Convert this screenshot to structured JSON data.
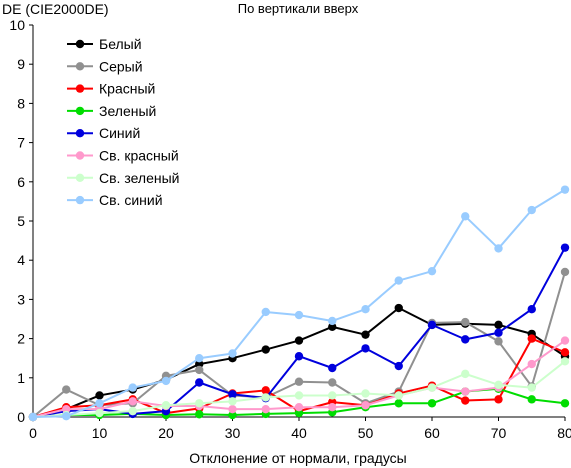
{
  "chart_data": {
    "type": "line",
    "title": "По вертикали вверх",
    "ylabel": "DE (CIE2000DE)",
    "xlabel": "Отклонение от нормали, градусы",
    "x": [
      0,
      5,
      10,
      15,
      20,
      25,
      30,
      35,
      40,
      45,
      50,
      55,
      60,
      65,
      70,
      75,
      80
    ],
    "xlim": [
      0,
      80
    ],
    "ylim": [
      0,
      10
    ],
    "xticks": [
      "0",
      "10",
      "20",
      "30",
      "40",
      "50",
      "60",
      "70",
      "80"
    ],
    "yticks": [
      "0",
      "1",
      "2",
      "3",
      "4",
      "5",
      "6",
      "7",
      "8",
      "9",
      "10"
    ],
    "grid": false,
    "legend_position": "top-left",
    "series": [
      {
        "name": "Белый",
        "color": "#000000",
        "values": [
          0,
          0.2,
          0.55,
          0.7,
          0.95,
          1.35,
          1.5,
          1.72,
          1.95,
          2.3,
          2.1,
          2.78,
          2.35,
          2.38,
          2.35,
          2.12,
          1.55
        ]
      },
      {
        "name": "Серый",
        "color": "#909090",
        "values": [
          0,
          0.7,
          0.3,
          0.35,
          1.05,
          1.2,
          0.55,
          0.5,
          0.9,
          0.88,
          0.35,
          0.65,
          2.4,
          2.42,
          1.93,
          0.78,
          3.7
        ]
      },
      {
        "name": "Красный",
        "color": "#ff0000",
        "values": [
          0,
          0.25,
          0.3,
          0.45,
          0.1,
          0.22,
          0.6,
          0.68,
          0.15,
          0.38,
          0.3,
          0.6,
          0.8,
          0.42,
          0.45,
          2.0,
          1.65
        ]
      },
      {
        "name": "Зеленый",
        "color": "#00dd00",
        "values": [
          0,
          0.05,
          0.05,
          0.08,
          0.05,
          0.07,
          0.05,
          0.08,
          0.1,
          0.12,
          0.25,
          0.35,
          0.35,
          0.65,
          0.72,
          0.45,
          0.35
        ]
      },
      {
        "name": "Синий",
        "color": "#0000dd",
        "values": [
          0,
          0.15,
          0.2,
          0.08,
          0.15,
          0.88,
          0.58,
          0.48,
          1.55,
          1.25,
          1.75,
          1.3,
          2.35,
          1.98,
          2.15,
          2.75,
          4.32
        ]
      },
      {
        "name": "Св. красный",
        "color": "#ff99cc",
        "values": [
          0,
          0.2,
          0.2,
          0.4,
          0.28,
          0.28,
          0.2,
          0.2,
          0.25,
          0.25,
          0.3,
          0.55,
          0.75,
          0.65,
          0.75,
          1.35,
          1.95
        ]
      },
      {
        "name": "Св. зеленый",
        "color": "#ccffcc",
        "values": [
          0,
          0.05,
          0.1,
          0.15,
          0.3,
          0.35,
          0.4,
          0.5,
          0.55,
          0.55,
          0.6,
          0.55,
          0.75,
          1.1,
          0.82,
          0.75,
          1.42
        ]
      },
      {
        "name": "Св. синий",
        "color": "#99ccff",
        "values": [
          0,
          0.02,
          0.35,
          0.75,
          0.92,
          1.5,
          1.62,
          2.68,
          2.6,
          2.45,
          2.75,
          3.48,
          3.72,
          5.12,
          4.3,
          5.28,
          5.8
        ]
      }
    ]
  }
}
